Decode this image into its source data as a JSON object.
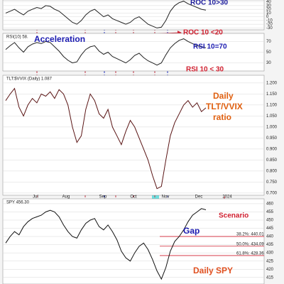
{
  "chart_data": [
    {
      "type": "line",
      "color": "#222222",
      "values": [
        10,
        15,
        20,
        12,
        5,
        15,
        20,
        25,
        22,
        30,
        28,
        20,
        15,
        5,
        -5,
        -15,
        -20,
        -10,
        5,
        15,
        20,
        10,
        0,
        5,
        -5,
        -10,
        -15,
        -20,
        -15,
        -5,
        0,
        -10,
        -20,
        -25,
        -30,
        -28,
        -10,
        15,
        30,
        38,
        42,
        35,
        30,
        25,
        20,
        18
      ],
      "ylim": [
        -35,
        45
      ],
      "yticks": [
        40,
        30,
        20,
        10,
        0,
        -10,
        -20,
        -30
      ]
    },
    {
      "type": "line",
      "title": "RSI(10) 58.",
      "color": "#222222",
      "values": [
        55,
        62,
        68,
        58,
        50,
        60,
        65,
        68,
        66,
        70,
        68,
        60,
        52,
        42,
        35,
        30,
        32,
        45,
        55,
        60,
        62,
        52,
        46,
        50,
        42,
        38,
        34,
        30,
        36,
        44,
        48,
        40,
        34,
        30,
        26,
        30,
        45,
        58,
        66,
        72,
        75,
        70,
        66,
        62,
        60,
        58
      ],
      "ylim": [
        15,
        85
      ],
      "yticks": [
        70,
        50,
        30
      ]
    },
    {
      "type": "line",
      "title": "TLT:$VVIX (Daily) 1.087",
      "color": "#5a1414",
      "values": [
        1.12,
        1.15,
        1.175,
        1.09,
        1.05,
        1.1,
        1.13,
        1.11,
        1.15,
        1.14,
        1.16,
        1.13,
        1.17,
        1.15,
        1.1,
        1.0,
        0.93,
        0.96,
        1.08,
        1.15,
        1.12,
        1.06,
        1.04,
        1.08,
        1.0,
        0.96,
        0.92,
        0.98,
        1.03,
        1.0,
        0.95,
        0.9,
        0.85,
        0.78,
        0.72,
        0.73,
        0.85,
        0.96,
        1.02,
        1.06,
        1.1,
        1.12,
        1.09,
        1.11,
        1.07,
        1.087
      ],
      "ylim": [
        0.69,
        1.235
      ],
      "yticks": [
        {
          "value": 1.2,
          "label": "1.200"
        },
        {
          "value": 1.15,
          "label": "1.150"
        },
        {
          "value": 1.1,
          "label": "1.100"
        },
        {
          "value": 1.05,
          "label": "1.050"
        },
        {
          "value": 1,
          "label": "1.000"
        },
        {
          "value": 0.95,
          "label": "0.950"
        },
        {
          "value": 0.9,
          "label": "0.900"
        },
        {
          "value": 0.85,
          "label": "0.850"
        },
        {
          "value": 0.8,
          "label": "0.800"
        },
        {
          "value": 0.75,
          "label": "0.750"
        },
        {
          "value": 0.7,
          "label": "0.700"
        }
      ]
    },
    {
      "type": "line",
      "title": "SPY 456.30",
      "color": "#111111",
      "values": [
        436,
        440,
        443,
        441,
        446,
        449,
        451,
        452,
        453,
        455,
        456,
        455,
        452,
        447,
        443,
        440,
        439,
        444,
        448,
        450,
        451,
        446,
        444,
        447,
        443,
        438,
        431,
        427,
        425,
        430,
        434,
        436,
        432,
        426,
        419,
        414,
        421,
        431,
        437,
        440,
        444,
        449,
        453,
        455,
        457,
        456.3
      ],
      "ylim": [
        411,
        463
      ],
      "yticks": [
        460,
        455,
        450,
        445,
        440,
        435,
        430,
        425,
        420,
        415
      ],
      "fib_levels": [
        {
          "label": "38.2%: 440.01",
          "value": 440.01
        },
        {
          "label": "50.0%: 434.09",
          "value": 434.09
        },
        {
          "label": "61.8%: 428.36",
          "value": 428.36
        }
      ]
    }
  ],
  "x_labels": [
    "Jul",
    "Aug",
    "Sep",
    "Oct",
    "Nov",
    "Dec",
    "2024"
  ],
  "annotations": [
    "ROC 10>30",
    "ROC 10 <20",
    "RSI 10=70",
    "RSI 10 < 30",
    "Acceleration",
    "Daily",
    "TLT/VVIX",
    "ratio",
    "Scenario",
    "Gap",
    "Daily SPY"
  ]
}
